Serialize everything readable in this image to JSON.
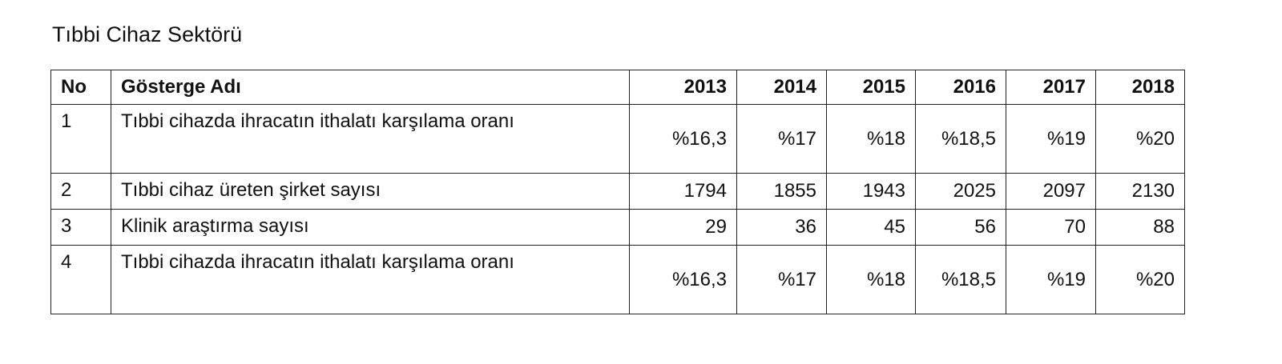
{
  "title": "Tıbbi Cihaz Sektörü",
  "table": {
    "header": [
      "No",
      "Gösterge Adı",
      "2013",
      "2014",
      "2015",
      "2016",
      "2017",
      "2018"
    ],
    "rows": [
      [
        1,
        "Tıbbi cihazda ihracatın ithalatı karşılama oranı",
        "%16,3",
        "%17",
        "%18",
        "%18,5",
        "%19",
        "%20"
      ],
      [
        2,
        "Tıbbi cihaz üreten şirket sayısı",
        1794,
        1855,
        1943,
        2025,
        2097,
        2130
      ],
      [
        3,
        "Klinik araştırma sayısı",
        29,
        36,
        45,
        56,
        70,
        88
      ],
      [
        4,
        "Tıbbi cihazda ihracatın ithalatı karşılama oranı",
        "%16,3",
        "%17",
        "%18",
        "%18,5",
        "%19",
        "%20"
      ]
    ]
  }
}
